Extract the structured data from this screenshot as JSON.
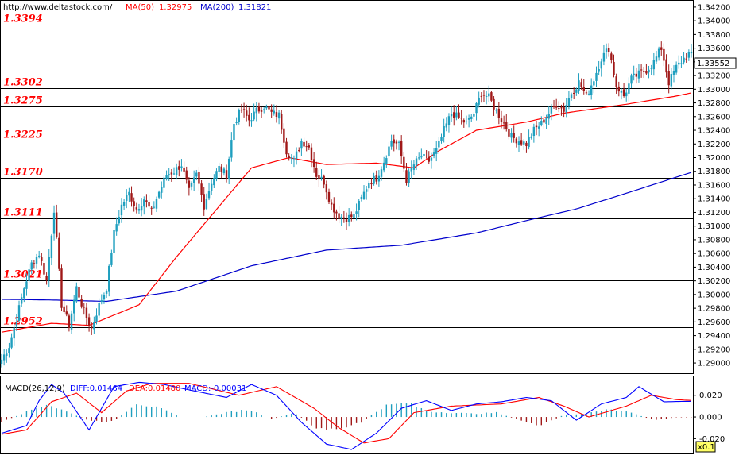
{
  "header": {
    "url": "http://www.deltastock.com/",
    "ma50_label": "MA(50)",
    "ma50_value": "1.32975",
    "ma200_label": "MA(200)",
    "ma200_value": "1.31821"
  },
  "macd_header": {
    "label": "MACD(26,12,9)",
    "diff_text": "DIFF:0.01464",
    "dea_text": "DEA:0.01480",
    "macd_text": "MACD:-0.00031"
  },
  "current_price": "1.33552",
  "scale_badge": "x0.1",
  "colors": {
    "up_candle": "#1f9fbf",
    "down_candle": "#a01818",
    "ma50": "#ff0000",
    "ma200": "#0000cc",
    "level_text": "#ff0000",
    "diff_line": "#0000ff",
    "dea_line": "#ff0000"
  },
  "chart_data": [
    {
      "type": "candlestick",
      "panel": "price",
      "ylim": [
        1.2885,
        1.3428
      ],
      "y_ticks": [
        "1.34200",
        "1.34000",
        "1.33800",
        "1.33600",
        "1.33400",
        "1.33200",
        "1.33000",
        "1.32800",
        "1.32600",
        "1.32400",
        "1.32200",
        "1.32000",
        "1.31800",
        "1.31600",
        "1.31400",
        "1.31200",
        "1.31000",
        "1.30800",
        "1.30600",
        "1.30400",
        "1.30200",
        "1.30000",
        "1.29800",
        "1.29600",
        "1.29400",
        "1.29200",
        "1.29000"
      ],
      "levels": [
        {
          "value": 1.3394,
          "label": "1.3394"
        },
        {
          "value": 1.3302,
          "label": "1.3302"
        },
        {
          "value": 1.3275,
          "label": "1.3275"
        },
        {
          "value": 1.3225,
          "label": "1.3225"
        },
        {
          "value": 1.317,
          "label": "1.3170"
        },
        {
          "value": 1.3111,
          "label": "1.3111"
        },
        {
          "value": 1.3021,
          "label": "1.3021"
        },
        {
          "value": 1.2952,
          "label": "1.2952"
        }
      ],
      "close_anchors": [
        1.2905,
        1.2925,
        1.2965,
        1.301,
        1.3045,
        1.306,
        1.302,
        1.3125,
        1.2985,
        1.2955,
        1.301,
        1.2975,
        1.295,
        1.2985,
        1.301,
        1.309,
        1.313,
        1.3148,
        1.3125,
        1.314,
        1.312,
        1.315,
        1.3175,
        1.318,
        1.319,
        1.315,
        1.3175,
        1.313,
        1.3165,
        1.3185,
        1.3175,
        1.325,
        1.327,
        1.3255,
        1.3268,
        1.3275,
        1.3265,
        1.3262,
        1.321,
        1.3195,
        1.3225,
        1.3215,
        1.3175,
        1.3165,
        1.313,
        1.3115,
        1.3112,
        1.3115,
        1.314,
        1.3165,
        1.317,
        1.3195,
        1.3225,
        1.3218,
        1.3168,
        1.319,
        1.3202,
        1.3195,
        1.321,
        1.324,
        1.3265,
        1.3258,
        1.325,
        1.3265,
        1.3295,
        1.3288,
        1.3268,
        1.325,
        1.323,
        1.3225,
        1.322,
        1.324,
        1.325,
        1.3265,
        1.3278,
        1.327,
        1.3295,
        1.331,
        1.329,
        1.3315,
        1.3345,
        1.336,
        1.3305,
        1.329,
        1.3315,
        1.3322,
        1.3328,
        1.334,
        1.336,
        1.331,
        1.3332,
        1.3345,
        1.3355
      ],
      "close_anchor_spacing_bars": 3,
      "ma50": {
        "name": "MA(50)",
        "x_bar": [
          0,
          20,
          35,
          55,
          70,
          85,
          100,
          115,
          130,
          150,
          165,
          175,
          190,
          210,
          225,
          250,
          270,
          279
        ],
        "y": [
          1.2945,
          1.2958,
          1.2955,
          1.2985,
          1.3055,
          1.312,
          1.3185,
          1.32,
          1.319,
          1.3192,
          1.3185,
          1.321,
          1.324,
          1.3252,
          1.3265,
          1.3278,
          1.329,
          1.3297
        ]
      },
      "ma200": {
        "name": "MA(200)",
        "x_bar": [
          0,
          20,
          42,
          70,
          100,
          130,
          160,
          190,
          210,
          230,
          250,
          279
        ],
        "y": [
          1.2993,
          1.2992,
          1.299,
          1.3005,
          1.3042,
          1.3065,
          1.3072,
          1.309,
          1.3108,
          1.3125,
          1.3148,
          1.3182
        ]
      }
    },
    {
      "type": "macd",
      "panel": "indicator",
      "ylim": [
        -0.03,
        0.033
      ],
      "y_ticks": [
        "0.020",
        "0.000",
        "-0.020"
      ],
      "diff": {
        "x_bar": [
          0,
          10,
          15,
          20,
          25,
          30,
          35,
          40,
          45,
          55,
          65,
          75,
          90,
          100,
          110,
          120,
          130,
          140,
          150,
          160,
          170,
          180,
          190,
          200,
          210,
          220,
          230,
          240,
          250,
          255,
          265,
          279
        ],
        "y": [
          -0.015,
          -0.008,
          0.015,
          0.03,
          0.022,
          0.005,
          -0.012,
          0.008,
          0.028,
          0.032,
          0.03,
          0.025,
          0.018,
          0.03,
          0.02,
          -0.005,
          -0.025,
          -0.03,
          -0.015,
          0.008,
          0.015,
          0.006,
          0.012,
          0.014,
          0.018,
          0.015,
          -0.003,
          0.012,
          0.018,
          0.028,
          0.014,
          0.0146
        ]
      },
      "dea": {
        "x_bar": [
          0,
          10,
          20,
          30,
          40,
          50,
          60,
          75,
          95,
          110,
          125,
          135,
          145,
          155,
          165,
          180,
          200,
          215,
          225,
          235,
          250,
          260,
          270,
          279
        ],
        "y": [
          -0.016,
          -0.012,
          0.014,
          0.022,
          0.004,
          0.024,
          0.031,
          0.031,
          0.02,
          0.028,
          0.008,
          -0.01,
          -0.024,
          -0.02,
          0.004,
          0.01,
          0.012,
          0.018,
          0.01,
          0.0,
          0.01,
          0.02,
          0.016,
          0.0148
        ]
      },
      "hist_anchors": [
        -0.005,
        0.004,
        0.012,
        0.004,
        -0.004,
        -0.004,
        0.013,
        0.008,
        0.0,
        0.0,
        0.004,
        0.007,
        -0.002,
        0.004,
        -0.01,
        -0.012,
        -0.005,
        0.01,
        0.013,
        0.005,
        0.004,
        0.003,
        0.004,
        -0.003,
        -0.008,
        0.002,
        0.003,
        0.008,
        0.004,
        -0.003,
        -0.0003
      ],
      "hist_anchor_spacing_bars": 9
    }
  ]
}
